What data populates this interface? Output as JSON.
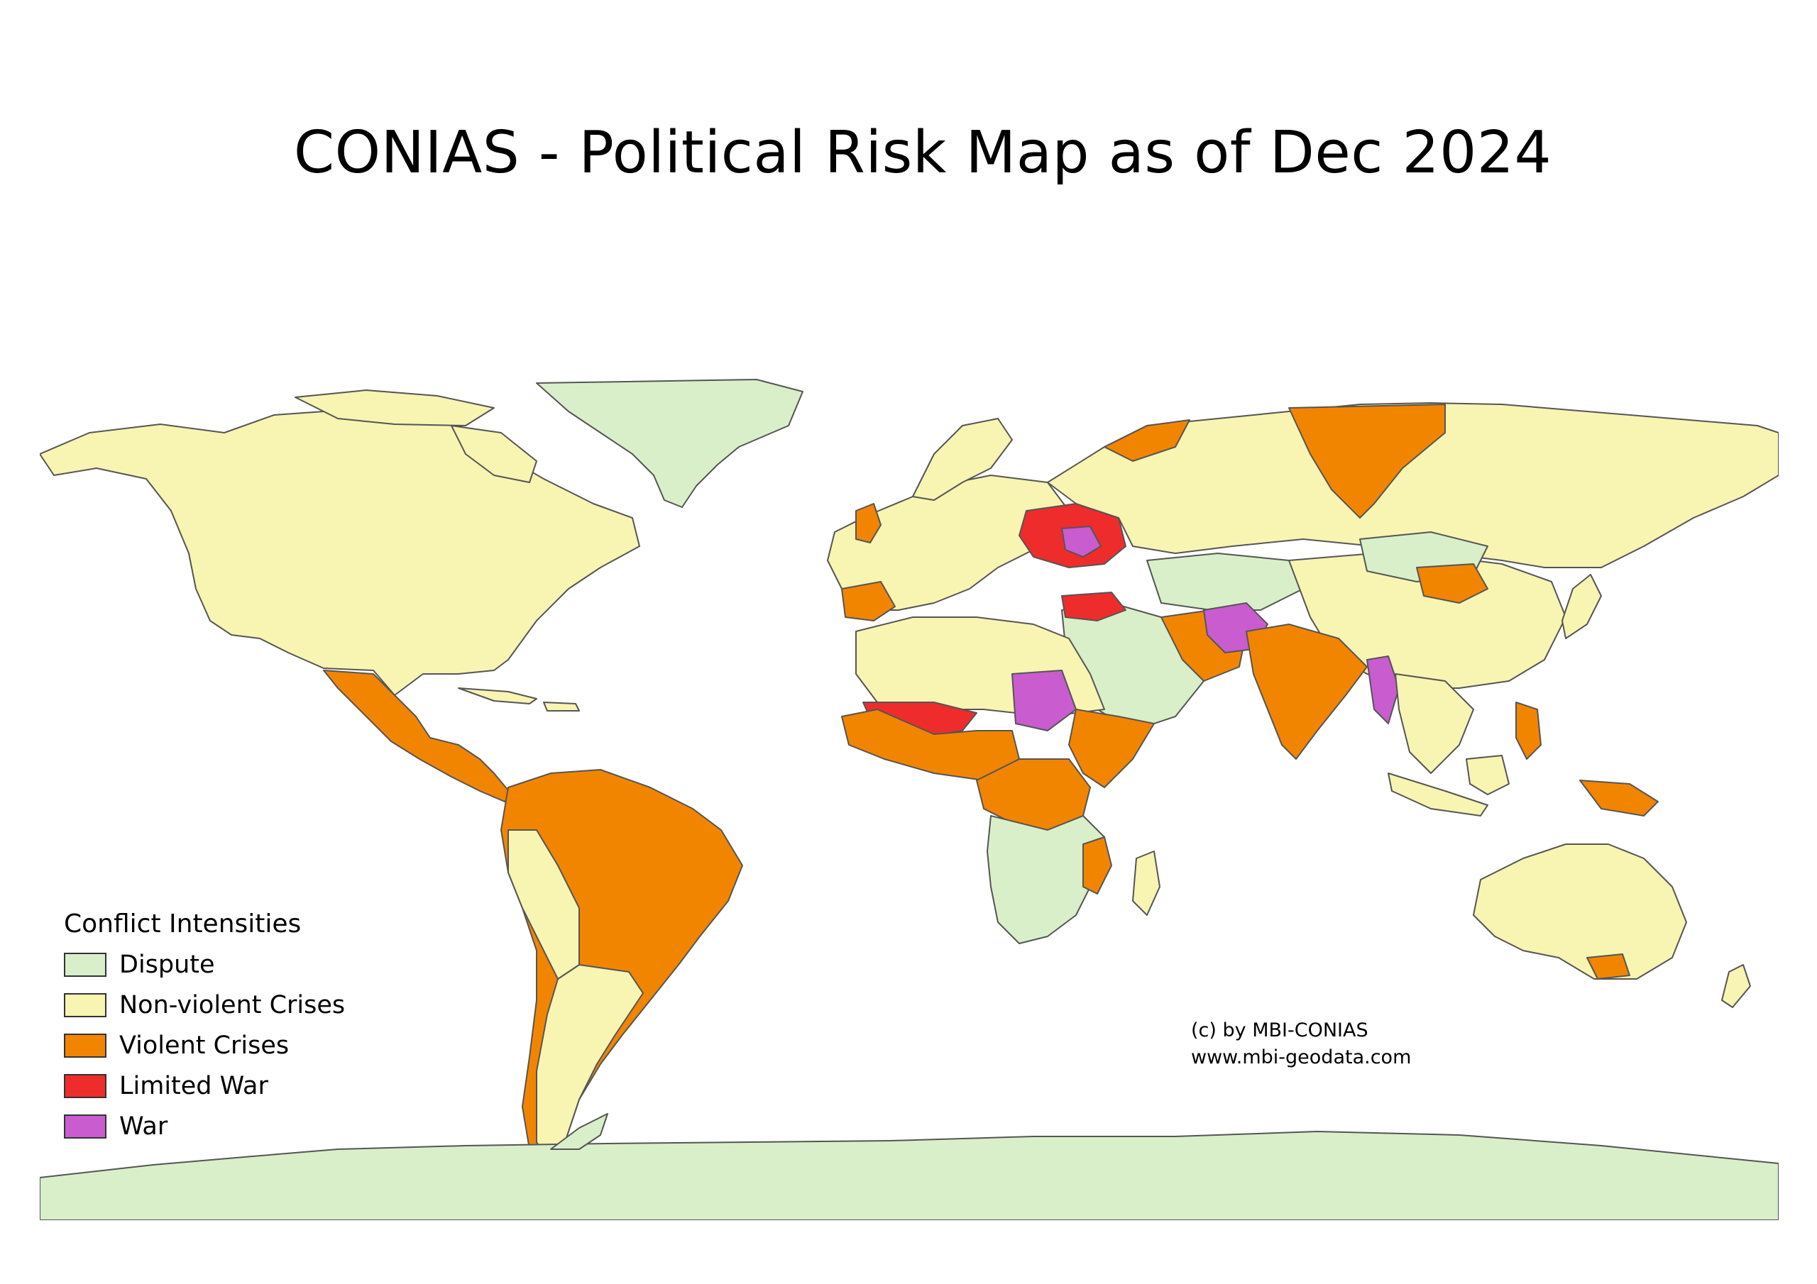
{
  "map": {
    "title": "CONIAS - Political Risk Map as of Dec 2024",
    "colors": {
      "ocean": "#ffffff",
      "dispute": "#d9efc9",
      "non_violent_crises": "#f8f4b2",
      "violent_crises": "#f28500",
      "limited_war": "#ee2c2c",
      "war": "#c95ccf",
      "border": "#555555"
    }
  },
  "legend": {
    "title": "Conflict Intensities",
    "items": [
      {
        "label": "Dispute",
        "color": "#d9efc9"
      },
      {
        "label": "Non-violent Crises",
        "color": "#f8f4b2"
      },
      {
        "label": "Violent Crises",
        "color": "#f28500"
      },
      {
        "label": "Limited War",
        "color": "#ee2c2c"
      },
      {
        "label": "War",
        "color": "#c95ccf"
      }
    ]
  },
  "credit": {
    "line1": "(c) by MBI-CONIAS",
    "line2": "www.mbi-geodata.com"
  }
}
